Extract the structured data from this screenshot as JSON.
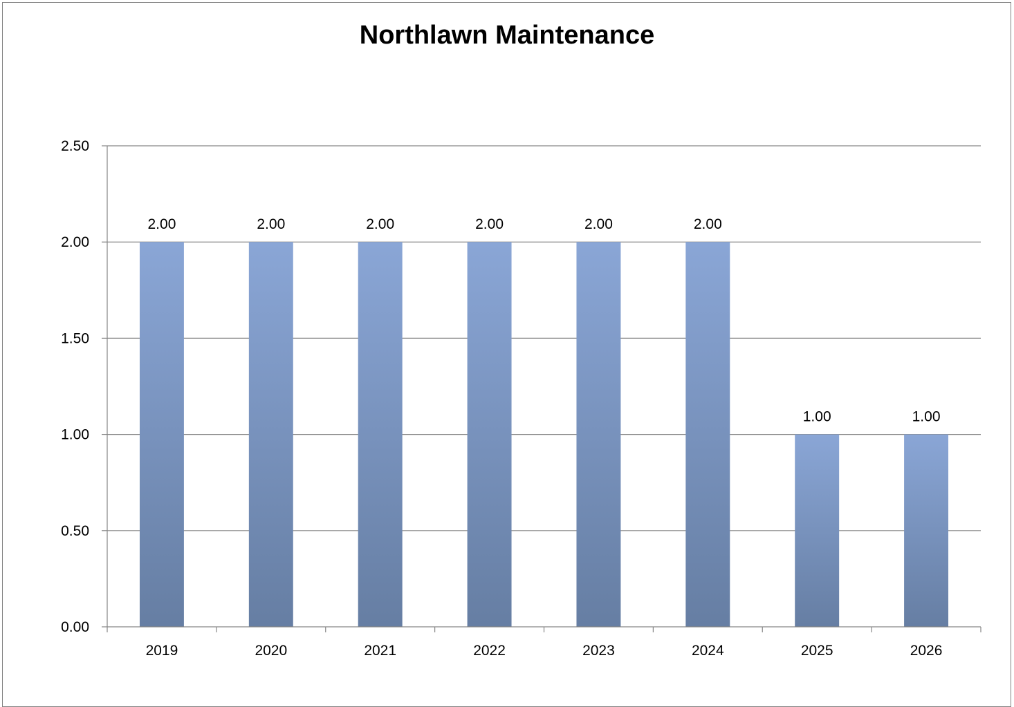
{
  "chart_data": {
    "type": "bar",
    "title": "Northlawn Maintenance",
    "xlabel": "",
    "ylabel": "",
    "categories": [
      "2019",
      "2020",
      "2021",
      "2022",
      "2023",
      "2024",
      "2025",
      "2026"
    ],
    "values": [
      2.0,
      2.0,
      2.0,
      2.0,
      2.0,
      2.0,
      1.0,
      1.0
    ],
    "data_labels": [
      "2.00",
      "2.00",
      "2.00",
      "2.00",
      "2.00",
      "2.00",
      "1.00",
      "1.00"
    ],
    "ylim": [
      0,
      2.5
    ],
    "yticks": [
      0,
      0.5,
      1.0,
      1.5,
      2.0,
      2.5
    ],
    "ytick_labels": [
      "0.00",
      "0.50",
      "1.00",
      "1.50",
      "2.00",
      "2.50"
    ],
    "grid": true,
    "legend": "none",
    "colors": {
      "bar_top": "#8AA6D6",
      "bar_bottom": "#667EA3",
      "grid": "#868686",
      "axis": "#868686"
    }
  }
}
